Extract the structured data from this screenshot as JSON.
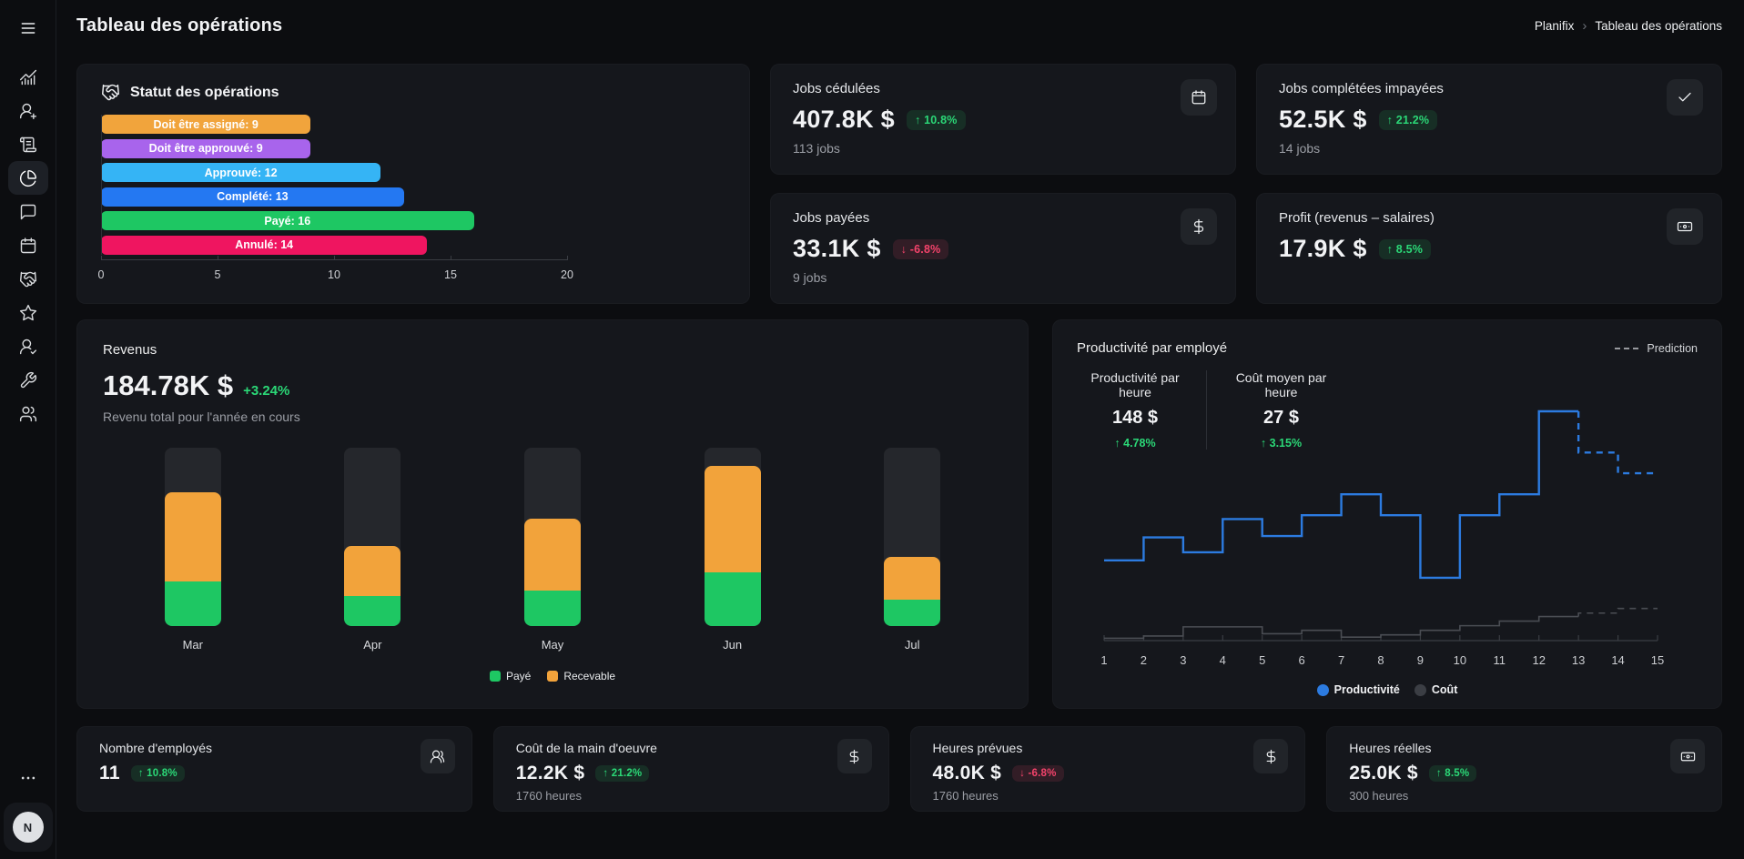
{
  "app": {
    "title": "Tableau des opérations",
    "breadcrumb": {
      "root": "Planifix",
      "separator": "›",
      "current": "Tableau des opérations"
    }
  },
  "sidebar": {
    "active_item": "pie-chart",
    "items": [
      "menu",
      "analytics",
      "user-add",
      "invoices",
      "pie-chart",
      "messages",
      "calendar",
      "partners",
      "favorites",
      "user-check",
      "tools",
      "team"
    ],
    "avatar_initial": "N"
  },
  "status_card": {
    "title": "Statut des opérations",
    "chart_data": {
      "type": "bar",
      "orientation": "horizontal",
      "categories": [
        "Doit être assigné",
        "Doit être approuvé",
        "Approuvé",
        "Complété",
        "Payé",
        "Annulé"
      ],
      "values": [
        9,
        9,
        12,
        13,
        16,
        14
      ],
      "bar_labels": [
        "Doit être assigné: 9",
        "Doit être approuvé: 9",
        "Approuvé: 12",
        "Complété: 13",
        "Payé: 16",
        "Annulé: 14"
      ],
      "colors": [
        "#f1a43c",
        "#a864ec",
        "#35b4f5",
        "#2478f2",
        "#1ec763",
        "#ef1560"
      ],
      "xlim": [
        0,
        20
      ],
      "x_ticks": [
        "0",
        "5",
        "10",
        "15",
        "20"
      ]
    }
  },
  "top_cards": [
    {
      "label": "Jobs cédulées",
      "value": "407.8K $",
      "delta_text": "↑ 10.8%",
      "delta_dir": "up",
      "sub": "113 jobs",
      "icon": "calendar"
    },
    {
      "label": "Jobs payées",
      "value": "33.1K $",
      "delta_text": "↓ -6.8%",
      "delta_dir": "down",
      "sub": "9 jobs",
      "icon": "dollar"
    },
    {
      "label": "Jobs complétées impayées",
      "value": "52.5K $",
      "delta_text": "↑ 21.2%",
      "delta_dir": "up",
      "sub": "14 jobs",
      "icon": "check"
    },
    {
      "label": "Profit (revenus – salaires)",
      "value": "17.9K $",
      "delta_text": "↑ 8.5%",
      "delta_dir": "up",
      "sub": "",
      "icon": "banknote"
    }
  ],
  "revenue_card": {
    "title": "Revenus",
    "value": "184.78K $",
    "delta_text": "+3.24%",
    "subtitle": "Revenu total pour l'année en cours",
    "chart_data": {
      "type": "stacked-bar",
      "categories": [
        "Mar",
        "Apr",
        "May",
        "Jun",
        "Jul"
      ],
      "series": [
        {
          "name": "Payé",
          "color": "#1ec763",
          "values_pct_of_track": [
            25,
            17,
            20,
            30,
            15
          ]
        },
        {
          "name": "Recevable",
          "color": "#f2a33b",
          "values_pct_of_track": [
            50,
            28,
            40,
            60,
            24
          ]
        }
      ],
      "note": "values estimated as % of full bar track height"
    }
  },
  "productivity_card": {
    "title": "Productivité par employé",
    "prediction_label": "Prediction",
    "stats": [
      {
        "label": "Productivité par heure",
        "value": "148 $",
        "delta_text": "↑ 4.78%",
        "delta_dir": "up"
      },
      {
        "label": "Coût moyen par heure",
        "value": "27 $",
        "delta_text": "↑ 3.15%",
        "delta_dir": "up"
      }
    ],
    "chart_data": {
      "type": "step-line",
      "x_ticks": [
        1,
        2,
        3,
        4,
        5,
        6,
        7,
        8,
        9,
        10,
        11,
        12,
        13,
        14,
        15
      ],
      "series": [
        {
          "name": "Productivité",
          "color": "#2c7be0",
          "dot_color": "#2c7be0",
          "values_pct": [
            35,
            45,
            38.5,
            53,
            45.6,
            54.7,
            63.8,
            54.7,
            27.4,
            54.7,
            63.8,
            100,
            82,
            73
          ],
          "prediction_from_segment": 12
        },
        {
          "name": "Coût",
          "color": "#4a4d53",
          "dot_color": "#3b3e44",
          "values_pct": [
            1,
            2,
            6,
            6,
            3,
            4.5,
            1.5,
            2.5,
            4.5,
            6.5,
            8.5,
            10.5,
            12,
            14
          ],
          "prediction_from_segment": 12
        }
      ],
      "legend": [
        "Productivité",
        "Coût"
      ],
      "note": "values are % of chart height; last two segments are dashed predictions"
    }
  },
  "bottom_cards": [
    {
      "label": "Nombre d'employés",
      "value": "11",
      "delta_text": "↑ 10.8%",
      "delta_dir": "up",
      "sub": "",
      "icon": "users"
    },
    {
      "label": "Coût de la main d'oeuvre",
      "value": "12.2K $",
      "delta_text": "↑ 21.2%",
      "delta_dir": "up",
      "sub": "1760 heures",
      "icon": "dollar"
    },
    {
      "label": "Heures prévues",
      "value": "48.0K $",
      "delta_text": "↓ -6.8%",
      "delta_dir": "down",
      "sub": "1760 heures",
      "icon": "dollar"
    },
    {
      "label": "Heures réelles",
      "value": "25.0K $",
      "delta_text": "↑ 8.5%",
      "delta_dir": "up",
      "sub": "300 heures",
      "icon": "banknote"
    }
  ],
  "colors": {
    "background": "#0c0d10",
    "card": "#15171c",
    "icon_tile": "#212429",
    "bar_track": "#25272c",
    "positive": "#2bd877",
    "negative": "#f4436b",
    "accent_blue": "#2c7be0"
  }
}
